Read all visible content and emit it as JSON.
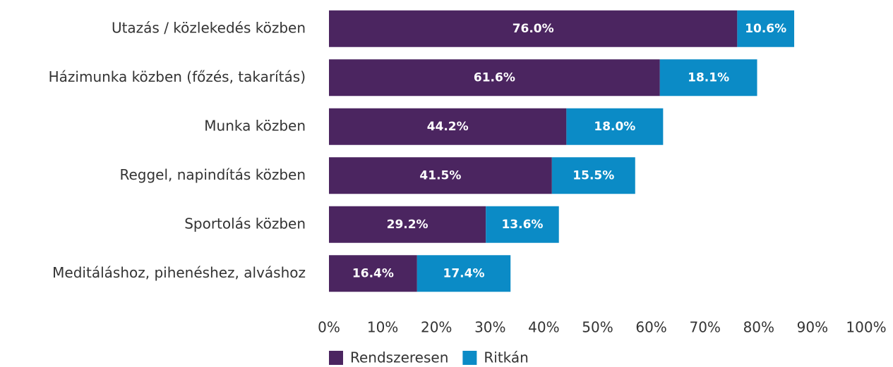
{
  "chart_data": {
    "type": "bar",
    "orientation": "horizontal",
    "stacked": true,
    "categories": [
      "Utazás / közlekedés közben",
      "Házimunka közben (főzés, takarítás)",
      "Munka közben",
      "Reggel, napindítás közben",
      "Sportolás közben",
      "Meditáláshoz, pihenéshez, alváshoz"
    ],
    "series": [
      {
        "name": "Rendszeresen",
        "color": "#4b2560",
        "values": [
          76.0,
          61.6,
          44.2,
          41.5,
          29.2,
          16.4
        ],
        "value_labels": [
          "76.0%",
          "61.6%",
          "44.2%",
          "41.5%",
          "29.2%",
          "16.4%"
        ]
      },
      {
        "name": "Ritkán",
        "color": "#0b8bc6",
        "values": [
          10.6,
          18.1,
          18.0,
          15.5,
          13.6,
          17.4
        ],
        "value_labels": [
          "10.6%",
          "18.1%",
          "18.0%",
          "15.5%",
          "13.6%",
          "17.4%"
        ]
      }
    ],
    "xlim": [
      0,
      100
    ],
    "xticks": [
      {
        "value": 0,
        "label": "0%"
      },
      {
        "value": 10,
        "label": "10%"
      },
      {
        "value": 20,
        "label": "20%"
      },
      {
        "value": 30,
        "label": "30%"
      },
      {
        "value": 40,
        "label": "40%"
      },
      {
        "value": 50,
        "label": "50%"
      },
      {
        "value": 60,
        "label": "60%"
      },
      {
        "value": 70,
        "label": "70%"
      },
      {
        "value": 80,
        "label": "80%"
      },
      {
        "value": 90,
        "label": "90%"
      },
      {
        "value": 100,
        "label": "100%"
      }
    ],
    "legend": "bottom"
  }
}
